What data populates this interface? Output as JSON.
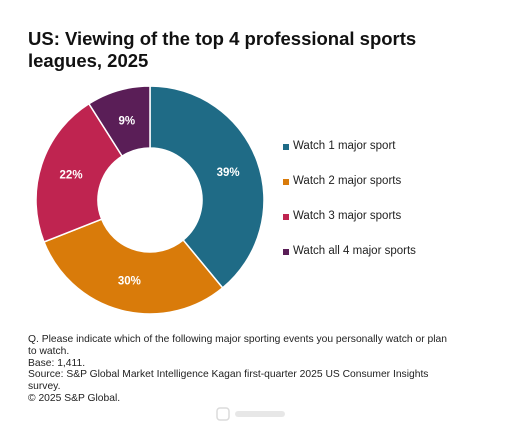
{
  "title": "US: Viewing of the top 4 professional sports leagues, 2025",
  "chart_data": {
    "type": "pie",
    "donut": true,
    "title": "US: Viewing of the top 4 professional sports leagues, 2025",
    "categories": [
      "Watch 1 major sport",
      "Watch 2 major sports",
      "Watch 3 major sports",
      "Watch all 4 major sports"
    ],
    "values": [
      39,
      30,
      22,
      9
    ],
    "value_labels": [
      "39%",
      "30%",
      "22%",
      "9%"
    ],
    "colors": [
      "#1f6b86",
      "#d97b0a",
      "#bf2450",
      "#5a1e57"
    ],
    "legend_position": "right"
  },
  "notes": {
    "question": "Q. Please indicate which of the following major sporting events you personally watch or plan to watch.",
    "base": "Base: 1,411.",
    "source": "Source: S&P Global Market Intelligence Kagan first-quarter 2025 US Consumer Insights survey.",
    "copyright": "© 2025 S&P Global."
  }
}
